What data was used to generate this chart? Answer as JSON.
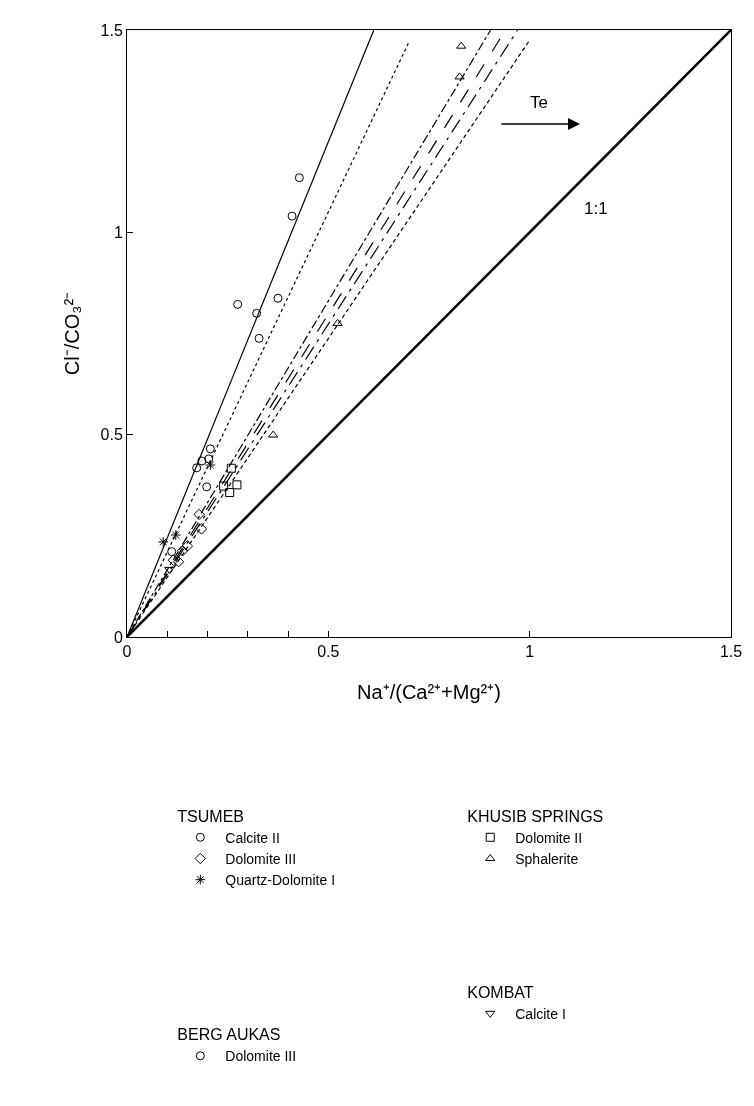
{
  "chart_data": {
    "type": "scatter",
    "xlabel": "Na⁺/(Ca²⁺+Mg²⁺)",
    "ylabel": "Cl⁻/CO₃²⁻",
    "xlim": [
      0,
      1.5
    ],
    "ylim": [
      0,
      1.5
    ],
    "xticks": [
      0,
      {
        "value": 0.1,
        "label": null
      },
      {
        "value": 0.2,
        "label": null
      },
      {
        "value": 0.3,
        "label": null
      },
      {
        "value": 0.4,
        "label": null
      },
      0.5,
      1,
      1.5
    ],
    "yticks": [
      0,
      0.5,
      1,
      1.5
    ],
    "legend": "bottom",
    "series": [
      {
        "name": "TSUMEB",
        "marker": "none"
      },
      {
        "name": "Calcite II",
        "color": "#000000",
        "marker": "circle",
        "x": [
          0.428,
          0.41,
          0.275,
          0.322,
          0.375,
          0.328,
          0.173,
          0.198,
          0.203,
          0.111
        ],
        "values": [
          1.135,
          1.04,
          0.822,
          0.8,
          0.837,
          0.738,
          0.418,
          0.371,
          0.44,
          0.211
        ]
      },
      {
        "name": "Dolomite III",
        "color": "#000000",
        "marker": "diamond",
        "x": [
          0.179,
          0.185,
          0.15,
          0.138,
          0.128,
          0.115
        ],
        "values": [
          0.303,
          0.267,
          0.225,
          0.213,
          0.186,
          0.19
        ]
      },
      {
        "name": "Quartz-Dolomite I",
        "color": "#000000",
        "marker": "cross",
        "x": [
          0.207,
          0.09,
          0.121
        ],
        "values": [
          0.425,
          0.235,
          0.252
        ]
      },
      {
        "name": "BERG AUKAS",
        "marker": "none"
      },
      {
        "name": "Dolomite III",
        "color": "#000000",
        "marker": "circle",
        "x": [
          0.207,
          0.186
        ],
        "values": [
          0.465,
          0.435
        ]
      },
      {
        "name": "KHUSIB SPRINGS",
        "marker": "none"
      },
      {
        "name": "Dolomite II",
        "color": "#000000",
        "marker": "square",
        "x": [
          0.259,
          0.24,
          0.273,
          0.255
        ],
        "values": [
          0.417,
          0.373,
          0.376,
          0.357
        ]
      },
      {
        "name": "Sphalerite",
        "color": "#000000",
        "marker": "triangle",
        "x": [
          0.83,
          0.826,
          0.523,
          0.363
        ],
        "values": [
          1.46,
          1.384,
          0.775,
          0.499
        ]
      },
      {
        "name": "KOMBAT",
        "marker": "none"
      },
      {
        "name": "Calcite I",
        "color": "#000000",
        "marker": "triangle-down",
        "x": [
          0.105
        ],
        "values": [
          0.167
        ]
      },
      {
        "type": "line",
        "color": "#000000",
        "line_style": "solid",
        "x": [
          0,
          0.613
        ],
        "values": [
          0,
          1.5
        ]
      },
      {
        "type": "line",
        "color": "#000000",
        "line_style": "dotted",
        "x": [
          0,
          0.7
        ],
        "values": [
          0,
          1.47
        ]
      },
      {
        "type": "line",
        "color": "#000000",
        "line_style": "longdash",
        "x": [
          0,
          0.94
        ],
        "values": [
          0,
          1.5
        ]
      },
      {
        "type": "line",
        "color": "#000000",
        "line_style": "dashed",
        "x": [
          0,
          1.0
        ],
        "values": [
          0,
          1.475
        ]
      },
      {
        "type": "line",
        "color": "#000000",
        "line_style": "dashdot",
        "x": [
          0,
          0.903
        ],
        "values": [
          0,
          1.5
        ]
      },
      {
        "type": "line",
        "color": "#000000",
        "line_style": "longdashdot",
        "x": [
          0,
          0.97
        ],
        "values": [
          0,
          1.5
        ]
      },
      {
        "type": "line",
        "color": "#000000",
        "line_style": "solid",
        "x": [
          0,
          1.5
        ],
        "values": [
          0,
          1.5
        ]
      }
    ],
    "annotations": [
      "Te",
      "1:1"
    ]
  }
}
